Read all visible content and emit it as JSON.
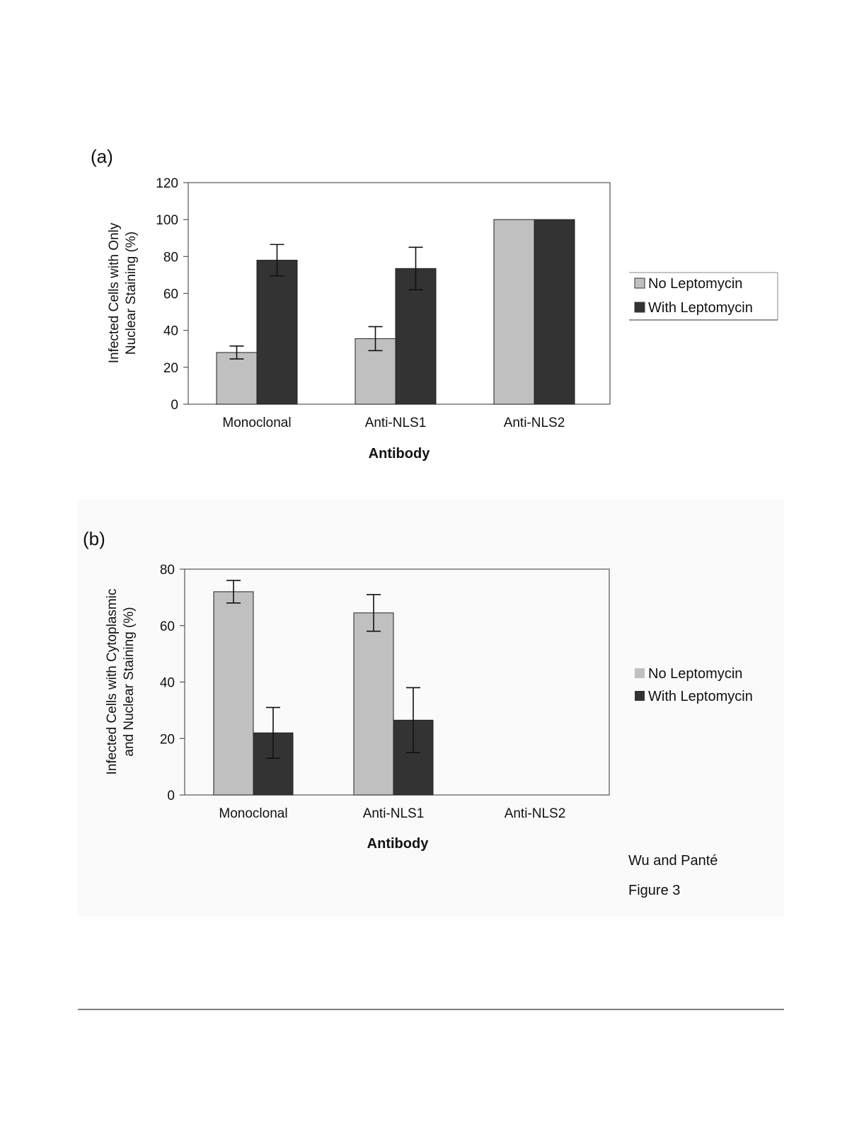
{
  "caption": {
    "authors": "Wu and Panté",
    "figure": "Figure 3"
  },
  "colors": {
    "no_leptomycin": "#c0c0c0",
    "with_leptomycin": "#333333",
    "axis": "#555555"
  },
  "chart_data": [
    {
      "type": "bar",
      "panel_label": "(a)",
      "categories": [
        "Monoclonal",
        "Anti-NLS1",
        "Anti-NLS2"
      ],
      "series": [
        {
          "name": "No Leptomycin",
          "values": [
            28,
            35.5,
            100
          ],
          "errors": [
            3.5,
            6.5,
            0
          ]
        },
        {
          "name": "With Leptomycin",
          "values": [
            78,
            73.5,
            100
          ],
          "errors": [
            8.5,
            11.5,
            0
          ]
        }
      ],
      "xlabel": "Antibody",
      "ylabel_lines": [
        "Infected Cells with Only",
        "Nuclear Staining (%)"
      ],
      "ylim": [
        0,
        120
      ],
      "yticks": [
        0,
        20,
        40,
        60,
        80,
        100,
        120
      ],
      "grid": false,
      "legend": "right"
    },
    {
      "type": "bar",
      "panel_label": "(b)",
      "categories": [
        "Monoclonal",
        "Anti-NLS1",
        "Anti-NLS2"
      ],
      "series": [
        {
          "name": "No Leptomycin",
          "values": [
            72,
            64.5,
            0
          ],
          "errors": [
            4,
            6.5,
            0
          ]
        },
        {
          "name": "With Leptomycin",
          "values": [
            22,
            26.5,
            0
          ],
          "errors": [
            9,
            11.5,
            0
          ]
        }
      ],
      "xlabel": "Antibody",
      "ylabel_lines": [
        "Infected Cells with Cytoplasmic",
        "and Nuclear Staining (%)"
      ],
      "ylim": [
        0,
        80
      ],
      "yticks": [
        0,
        20,
        40,
        60,
        80
      ],
      "grid": false,
      "legend": "right"
    }
  ]
}
